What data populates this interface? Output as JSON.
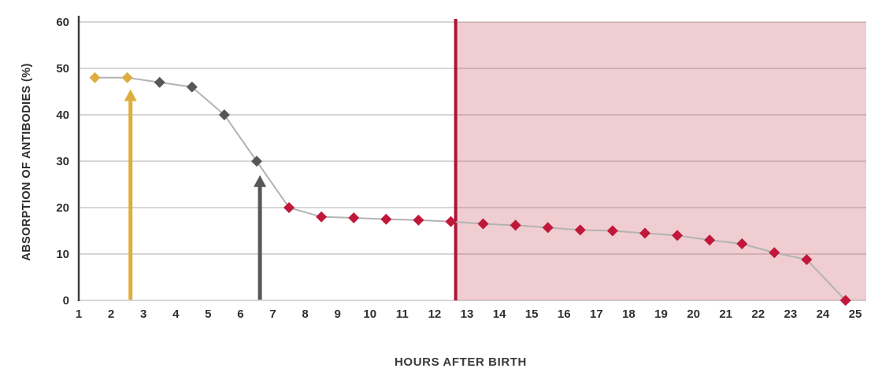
{
  "chart_data": {
    "type": "line",
    "title": "",
    "xlabel": "HOURS AFTER BIRTH",
    "ylabel": "ABSORPTION OF ANTIBODIES (%)",
    "xlim": [
      1,
      25
    ],
    "ylim": [
      0,
      60
    ],
    "x_ticks": [
      1,
      2,
      3,
      4,
      5,
      6,
      7,
      8,
      9,
      10,
      11,
      12,
      13,
      14,
      15,
      16,
      17,
      18,
      19,
      20,
      21,
      22,
      23,
      24,
      25
    ],
    "y_ticks": [
      0,
      10,
      20,
      30,
      40,
      50,
      60
    ],
    "grid": "horizontal",
    "legend": "none",
    "marker": "diamond",
    "line_color": "#b3b3b3",
    "colors": {
      "gold": "#dcae3e",
      "gray": "#575757",
      "red": "#c1173a"
    },
    "shaded_region": {
      "x_start": 12.65,
      "x_end": 25.35,
      "fill": "rgba(196,74,85,0.28)",
      "border_color": "#aa1236"
    },
    "points": [
      {
        "x": 1.5,
        "y": 48,
        "color": "gold"
      },
      {
        "x": 2.5,
        "y": 48,
        "color": "gold"
      },
      {
        "x": 3.5,
        "y": 47,
        "color": "gray"
      },
      {
        "x": 4.5,
        "y": 46,
        "color": "gray"
      },
      {
        "x": 5.5,
        "y": 40,
        "color": "gray"
      },
      {
        "x": 6.5,
        "y": 30,
        "color": "gray"
      },
      {
        "x": 7.5,
        "y": 20,
        "color": "red"
      },
      {
        "x": 8.5,
        "y": 18,
        "color": "red"
      },
      {
        "x": 9.5,
        "y": 17.8,
        "color": "red"
      },
      {
        "x": 10.5,
        "y": 17.5,
        "color": "red"
      },
      {
        "x": 11.5,
        "y": 17.3,
        "color": "red"
      },
      {
        "x": 12.5,
        "y": 17,
        "color": "red"
      },
      {
        "x": 13.5,
        "y": 16.5,
        "color": "red"
      },
      {
        "x": 14.5,
        "y": 16.2,
        "color": "red"
      },
      {
        "x": 15.5,
        "y": 15.7,
        "color": "red"
      },
      {
        "x": 16.5,
        "y": 15.2,
        "color": "red"
      },
      {
        "x": 17.5,
        "y": 15,
        "color": "red"
      },
      {
        "x": 18.5,
        "y": 14.5,
        "color": "red"
      },
      {
        "x": 19.5,
        "y": 14,
        "color": "red"
      },
      {
        "x": 20.5,
        "y": 13,
        "color": "red"
      },
      {
        "x": 21.5,
        "y": 12.2,
        "color": "red"
      },
      {
        "x": 22.5,
        "y": 10.3,
        "color": "red"
      },
      {
        "x": 23.5,
        "y": 8.8,
        "color": "red"
      },
      {
        "x": 24.7,
        "y": 0,
        "color": "red"
      }
    ],
    "arrows": [
      {
        "x": 2.6,
        "y_from": 0,
        "y_to": 45.5,
        "color": "gold"
      },
      {
        "x": 6.6,
        "y_from": 0,
        "y_to": 27,
        "color": "gray"
      }
    ]
  }
}
